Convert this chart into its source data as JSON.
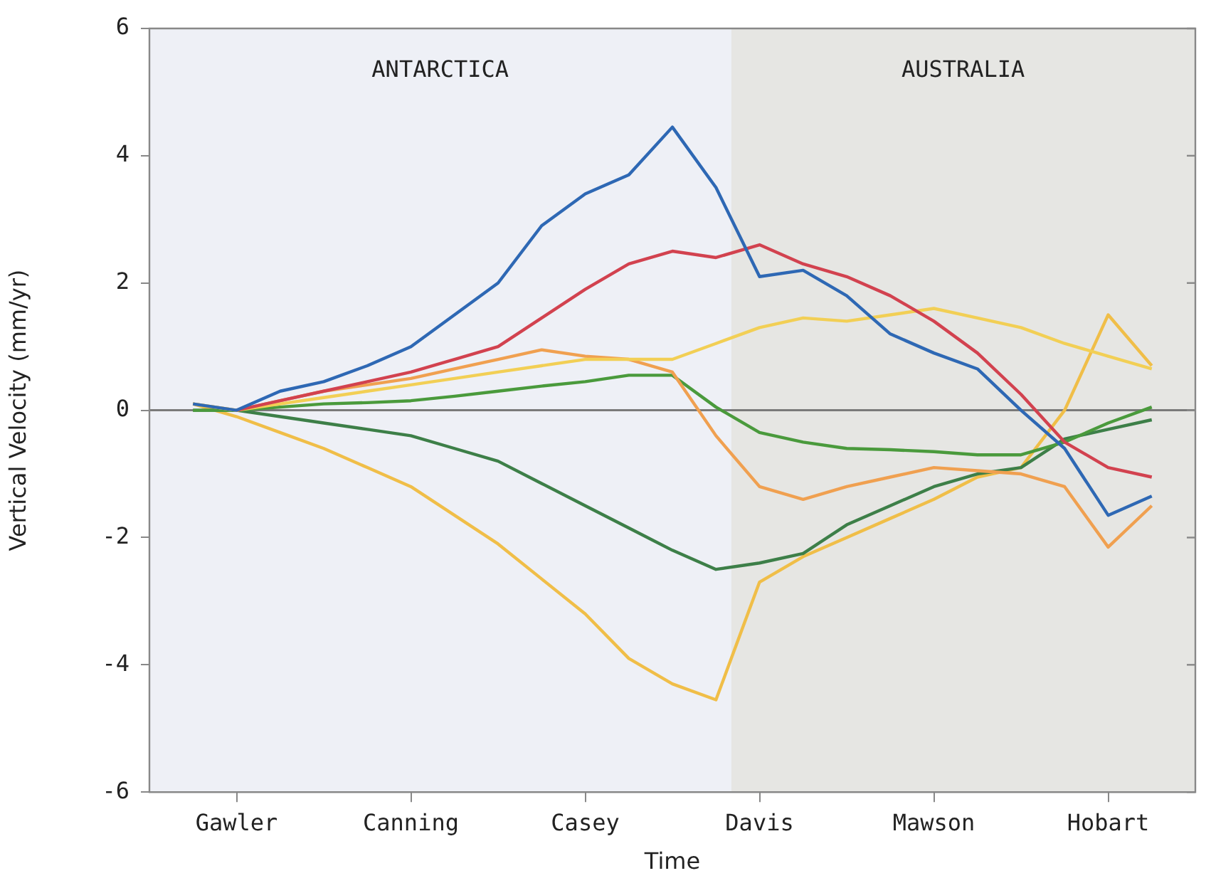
{
  "chart_data": {
    "type": "line",
    "xlabel": "Time",
    "ylabel": "Vertical Velocity (mm/yr)",
    "categories": [
      null,
      null,
      "Gawler",
      null,
      null,
      null,
      "Canning",
      null,
      null,
      null,
      "Casey",
      null,
      null,
      null,
      "Davis",
      null,
      null,
      null,
      "Mawson",
      null,
      null,
      null,
      "Hobart",
      null,
      null
    ],
    "ylim": [
      -6,
      6
    ],
    "yticks": [
      -6,
      -4,
      -2,
      0,
      2,
      4,
      6
    ],
    "grid": false,
    "legend": false,
    "marker": "none",
    "line_style": "solid",
    "annotations": [
      "ANTARCTICA",
      "AUSTRALIA"
    ],
    "ref_lines": [
      {
        "axis": "y",
        "value": 0,
        "color": "#7a7a7a"
      }
    ],
    "series": [
      {
        "color": "#2e68b4",
        "values": [
          null,
          0.1,
          0,
          0.3,
          0.45,
          0.7,
          1.0,
          1.5,
          2.0,
          2.9,
          3.4,
          3.7,
          4.45,
          3.5,
          2.1,
          2.2,
          1.8,
          1.2,
          0.9,
          0.65,
          0,
          -0.6,
          -1.65,
          -1.35,
          null
        ]
      },
      {
        "color": "#d2424f",
        "values": [
          null,
          null,
          0,
          0.15,
          0.3,
          0.45,
          0.6,
          0.8,
          1.0,
          1.45,
          1.9,
          2.3,
          2.5,
          2.4,
          2.6,
          2.3,
          2.1,
          1.8,
          1.4,
          0.9,
          0.25,
          -0.5,
          -0.9,
          -1.05,
          null
        ]
      },
      {
        "color": "#f2cf55",
        "values": [
          null,
          0.1,
          0,
          0.1,
          0.2,
          0.3,
          0.4,
          0.5,
          0.6,
          0.7,
          0.8,
          0.8,
          0.8,
          1.05,
          1.3,
          1.45,
          1.4,
          1.5,
          1.6,
          1.45,
          1.3,
          1.05,
          0.85,
          0.65,
          null
        ]
      },
      {
        "color": "#f0a050",
        "values": [
          null,
          0.1,
          0,
          0.15,
          0.3,
          0.4,
          0.5,
          0.65,
          0.8,
          0.95,
          0.85,
          0.8,
          0.6,
          -0.4,
          -1.2,
          -1.4,
          -1.2,
          -1.05,
          -0.9,
          -0.95,
          -1.0,
          -1.2,
          -2.15,
          -1.5,
          null
        ]
      },
      {
        "color": "#4a9a3c",
        "values": [
          null,
          0,
          0,
          0.05,
          0.1,
          0.12,
          0.15,
          0.22,
          0.3,
          0.38,
          0.45,
          0.55,
          0.55,
          0.05,
          -0.35,
          -0.5,
          -0.6,
          -0.62,
          -0.65,
          -0.7,
          -0.7,
          -0.5,
          -0.2,
          0.05,
          null
        ]
      },
      {
        "color": "#3d7f48",
        "values": [
          null,
          0,
          0,
          -0.1,
          -0.2,
          -0.3,
          -0.4,
          -0.6,
          -0.8,
          -1.15,
          -1.5,
          -1.85,
          -2.2,
          -2.5,
          -2.4,
          -2.25,
          -1.8,
          -1.5,
          -1.2,
          -1.0,
          -0.9,
          -0.45,
          -0.3,
          -0.15,
          null
        ]
      },
      {
        "color": "#f0be48",
        "values": [
          null,
          0.1,
          -0.1,
          -0.35,
          -0.6,
          -0.9,
          -1.2,
          -1.65,
          -2.1,
          -2.65,
          -3.2,
          -3.9,
          -4.3,
          -4.55,
          -2.7,
          -2.3,
          -2.0,
          -1.7,
          -1.4,
          -1.05,
          -0.9,
          0.0,
          1.5,
          0.7,
          null
        ]
      }
    ]
  }
}
